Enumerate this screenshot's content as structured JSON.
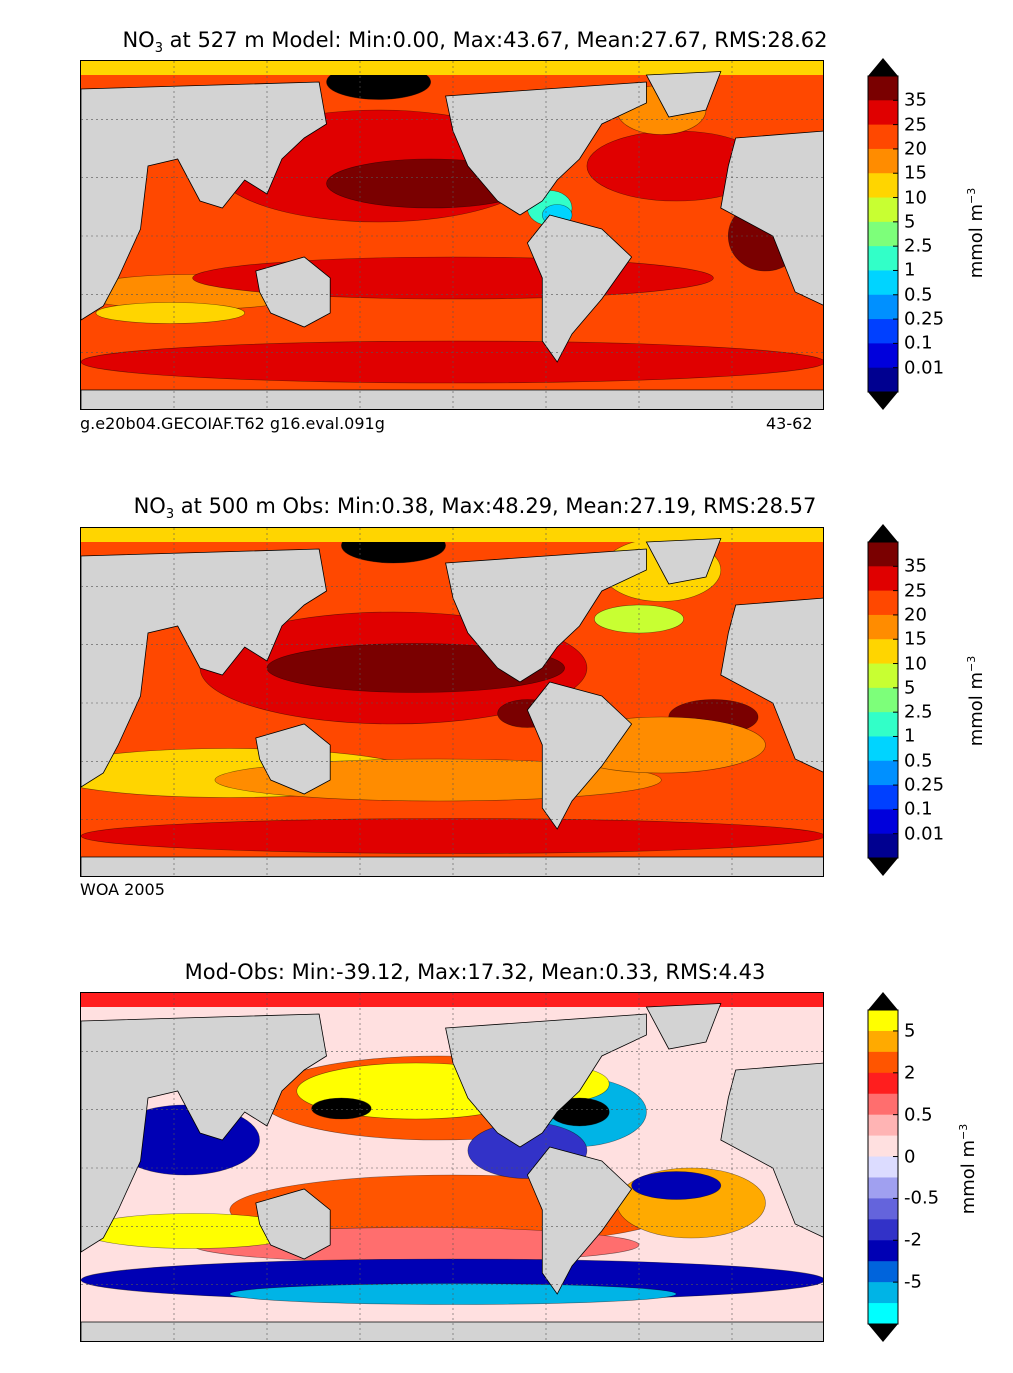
{
  "chart_data": [
    {
      "type": "heatmap",
      "title_species": "NO",
      "title_subscript": "3",
      "title_rest": " at 527 m Model: Min:0.00, Max:43.67, Mean:27.67, RMS:28.62",
      "caption_left": "g.e20b04.GECOIAF.T62 g16.eval.091g",
      "caption_right": "43-62",
      "colorbar": {
        "tick_labels": [
          "35",
          "25",
          "20",
          "15",
          "10",
          "5",
          "2.5",
          "1",
          "0.5",
          "0.25",
          "0.1",
          "0.01"
        ],
        "colors": [
          "#7a0000",
          "#e00000",
          "#ff4800",
          "#ff8c00",
          "#ffd500",
          "#c8ff32",
          "#7dff7a",
          "#32ffc8",
          "#00d4ff",
          "#0090ff",
          "#0040ff",
          "#0000dc",
          "#000090"
        ],
        "extend_top_color": "#000000",
        "extend_bottom_color": "#000000",
        "unit": "mmol m",
        "unit_exponent": "−3"
      },
      "stats": {
        "min": 0.0,
        "max": 43.67,
        "mean": 27.67,
        "rms": 28.62
      },
      "depth_m": 527
    },
    {
      "type": "heatmap",
      "title_species": "NO",
      "title_subscript": "3",
      "title_rest": " at 500 m Obs: Min:0.38, Max:48.29, Mean:27.19, RMS:28.57",
      "caption_left": "WOA 2005",
      "colorbar": {
        "tick_labels": [
          "35",
          "25",
          "20",
          "15",
          "10",
          "5",
          "2.5",
          "1",
          "0.5",
          "0.25",
          "0.1",
          "0.01"
        ],
        "colors": [
          "#7a0000",
          "#e00000",
          "#ff4800",
          "#ff8c00",
          "#ffd500",
          "#c8ff32",
          "#7dff7a",
          "#32ffc8",
          "#00d4ff",
          "#0090ff",
          "#0040ff",
          "#0000dc",
          "#000090"
        ],
        "extend_top_color": "#000000",
        "extend_bottom_color": "#000000",
        "unit": "mmol m",
        "unit_exponent": "−3"
      },
      "stats": {
        "min": 0.38,
        "max": 48.29,
        "mean": 27.19,
        "rms": 28.57
      },
      "depth_m": 500
    },
    {
      "type": "heatmap",
      "title_species": "",
      "title_subscript": "",
      "title_rest": "Mod-Obs: Min:-39.12, Max:17.32, Mean:0.33, RMS:4.43",
      "colorbar": {
        "tick_labels": [
          "5",
          "2",
          "0.5",
          "0",
          "-0.5",
          "-2",
          "-5"
        ],
        "tick_at_boundaries": [
          1,
          3,
          5,
          7,
          9,
          11,
          13
        ],
        "colors": [
          "#ffff00",
          "#ffaa00",
          "#ff5500",
          "#ff1e1e",
          "#ff6e6e",
          "#ffb4b4",
          "#ffe0e0",
          "#dcdcff",
          "#a0a0f0",
          "#6464dc",
          "#3232c8",
          "#0000b4",
          "#0064dc",
          "#00b4e6",
          "#00ffff"
        ],
        "extend_top_color": "#000000",
        "extend_bottom_color": "#000000",
        "unit": "mmol m",
        "unit_exponent": "−3"
      },
      "stats": {
        "min": -39.12,
        "max": 17.32,
        "mean": 0.33,
        "rms": 4.43
      }
    }
  ],
  "palette": {
    "land": "#d3d3d3",
    "ice": "#ffffff",
    "coast": "#000000",
    "grid": "#555555"
  }
}
